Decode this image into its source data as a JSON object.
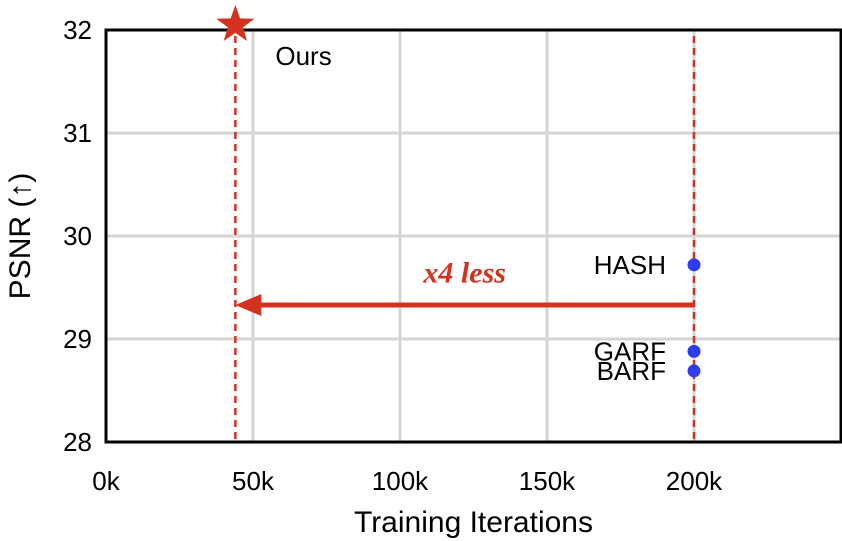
{
  "chart_data": {
    "type": "scatter",
    "xlabel": "Training Iterations",
    "ylabel": "PSNR (↑)",
    "xlim": [
      0,
      250000
    ],
    "ylim": [
      28,
      32
    ],
    "x_ticks": [
      0,
      50000,
      100000,
      150000,
      200000
    ],
    "x_tick_labels": [
      "0k",
      "50k",
      "100k",
      "150k",
      "200k"
    ],
    "y_ticks": [
      28,
      29,
      30,
      31,
      32
    ],
    "y_tick_labels": [
      "28",
      "29",
      "30",
      "31",
      "32"
    ],
    "grid": true,
    "points": [
      {
        "name": "Ours",
        "x": 44000,
        "y": 32.05,
        "marker": "star",
        "color": "#d2321e"
      },
      {
        "name": "HASH",
        "x": 200000,
        "y": 29.72,
        "marker": "circle",
        "color": "#2e3df0"
      },
      {
        "name": "GARF",
        "x": 200000,
        "y": 28.88,
        "marker": "circle",
        "color": "#2e3df0"
      },
      {
        "name": "BARF",
        "x": 200000,
        "y": 28.69,
        "marker": "circle",
        "color": "#2e3df0"
      }
    ],
    "reference_lines": [
      {
        "x": 44000,
        "style": "dashed",
        "color": "#d2321e"
      },
      {
        "x": 200000,
        "style": "dashed",
        "color": "#d2321e"
      }
    ],
    "arrow": {
      "from_x": 200000,
      "to_x": 44000,
      "y": 29.33,
      "color": "#d2321e"
    },
    "annotation": {
      "text": "x4 less",
      "x": 122000,
      "y": 29.55,
      "color": "#d2321e"
    }
  }
}
